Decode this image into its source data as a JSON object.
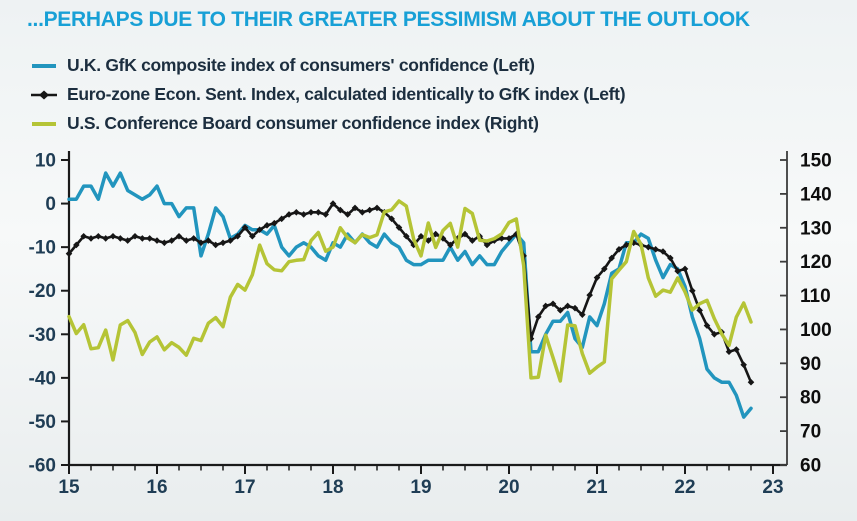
{
  "header": {
    "title": "...PERHAPS DUE TO THEIR GREATER PESSIMISM ABOUT THE OUTLOOK",
    "title_color": "#18a0d6"
  },
  "legend": {
    "items": [
      {
        "label": "U.K. GfK composite index of consumers' confidence (Left)",
        "color": "#2295be",
        "marker": "line"
      },
      {
        "label": "Euro-zone Econ. Sent. Index, calculated identically to GfK index (Left)",
        "color": "#161616",
        "marker": "line-diamond"
      },
      {
        "label": "U.S. Conference Board consumer confidence index (Right)",
        "color": "#b5c436",
        "marker": "line"
      }
    ]
  },
  "chart_data": {
    "type": "line",
    "title": "...PERHAPS DUE TO THEIR GREATER PESSIMISM ABOUT THE OUTLOOK",
    "x_start_year": 2015,
    "x_step_months": 1,
    "x_axis": {
      "tick_labels": [
        "15",
        "16",
        "17",
        "18",
        "19",
        "20",
        "21",
        "22",
        "23"
      ],
      "minor_ticks_per_year": 3,
      "range_years": [
        2015,
        2023.17
      ],
      "label_color": "#1f3d55"
    },
    "left_axis": {
      "ticks": [
        10,
        0,
        -10,
        -20,
        -30,
        -40,
        -50,
        -60
      ],
      "range": [
        -60,
        10
      ],
      "label_color": "#1f3d55",
      "axis_color": "#1a1a1a"
    },
    "right_axis": {
      "ticks": [
        150,
        140,
        130,
        120,
        110,
        100,
        90,
        80,
        70,
        60
      ],
      "range": [
        60,
        150
      ],
      "label_color": "#0d0d0d",
      "axis_color": "#3c3c3c"
    },
    "grid": false,
    "legend_position": "top-left",
    "series": [
      {
        "name": "U.K. GfK composite index of consumers' confidence",
        "axis": "left",
        "color": "#2295be",
        "marker": "none",
        "values": [
          1,
          1,
          4,
          4,
          1,
          7,
          4,
          7,
          3,
          2,
          1,
          2,
          4,
          0,
          0,
          -3,
          -1,
          -1,
          -12,
          -7,
          -1,
          -3,
          -8,
          -7,
          -5,
          -6,
          -6,
          -7,
          -5,
          -10,
          -12,
          -10,
          -9,
          -10,
          -12,
          -13,
          -9,
          -10,
          -7,
          -9,
          -7,
          -9,
          -10,
          -7,
          -9,
          -10,
          -13,
          -14,
          -14,
          -13,
          -13,
          -13,
          -10,
          -13,
          -11,
          -14,
          -12,
          -14,
          -14,
          -11,
          -9,
          -7,
          -9,
          -34,
          -34,
          -30,
          -27,
          -27,
          -25,
          -31,
          -33,
          -26,
          -28,
          -23,
          -16,
          -15,
          -9,
          -9,
          -7,
          -8,
          -13,
          -17,
          -14,
          -15,
          -19,
          -26,
          -31,
          -38,
          -40,
          -41,
          -41,
          -44,
          -49,
          -47
        ]
      },
      {
        "name": "Euro-zone Econ. Sent. Index, calculated identically to GfK index",
        "axis": "left",
        "color": "#161616",
        "marker": "diamond",
        "values": [
          -11.5,
          -9.5,
          -7.5,
          -8,
          -7.5,
          -8,
          -7.5,
          -8,
          -8.5,
          -7.5,
          -8,
          -8,
          -8.5,
          -9,
          -8.5,
          -7.5,
          -8.5,
          -8,
          -9,
          -8.5,
          -9.5,
          -9,
          -8.5,
          -7.5,
          -5.5,
          -7.5,
          -6,
          -5,
          -4.5,
          -3.5,
          -2.5,
          -2,
          -2.5,
          -2,
          -2,
          -2.5,
          0,
          -1.5,
          -2.5,
          -1,
          -2,
          -1.5,
          -1,
          -2,
          -3.5,
          -5.5,
          -7.5,
          -9.5,
          -7.5,
          -8.5,
          -7,
          -8,
          -9.5,
          -8,
          -7,
          -8.5,
          -7.5,
          -9.5,
          -8.5,
          -8,
          -8,
          -7,
          -12,
          -31,
          -26,
          -23.5,
          -23,
          -24.5,
          -23.5,
          -24,
          -25.5,
          -21,
          -17,
          -15,
          -12.5,
          -10.5,
          -9.5,
          -9,
          -9.5,
          -10,
          -10.5,
          -11,
          -12.5,
          -15.5,
          -15,
          -20,
          -24.5,
          -28,
          -30,
          -29.5,
          -34,
          -33.5,
          -37,
          -41
        ]
      },
      {
        "name": "U.S. Conference Board consumer confidence index",
        "axis": "right",
        "color": "#b5c436",
        "marker": "none",
        "values": [
          103.8,
          98.8,
          101.4,
          94.3,
          94.6,
          99.8,
          91,
          101.3,
          102.6,
          99.1,
          92.6,
          96.3,
          97.8,
          94,
          96.1,
          94.7,
          92.4,
          97.4,
          96.7,
          101.8,
          103.5,
          100.8,
          109.5,
          113.3,
          111.6,
          116.1,
          124.9,
          119.4,
          117.6,
          117.3,
          120,
          120.4,
          120.6,
          126.2,
          128.6,
          123.1,
          124.3,
          130,
          127,
          125.6,
          128,
          127.1,
          127.9,
          134.7,
          135.3,
          137.9,
          136.4,
          126.6,
          121.7,
          131.4,
          124.2,
          129.2,
          131.3,
          124.3,
          135.7,
          134.2,
          126.3,
          126.1,
          126.8,
          128.2,
          131.6,
          132.6,
          118.8,
          85.7,
          85.9,
          98.3,
          91.7,
          84.8,
          101.3,
          101.1,
          92.9,
          87.1,
          88.9,
          90.4,
          114.9,
          117.5,
          120,
          128.9,
          125.1,
          115.2,
          109.8,
          111.6,
          111,
          115.2,
          111.1,
          105.7,
          107.6,
          108.6,
          103.2,
          98.7,
          95.3,
          103.6,
          107.8,
          102.2
        ]
      }
    ]
  }
}
